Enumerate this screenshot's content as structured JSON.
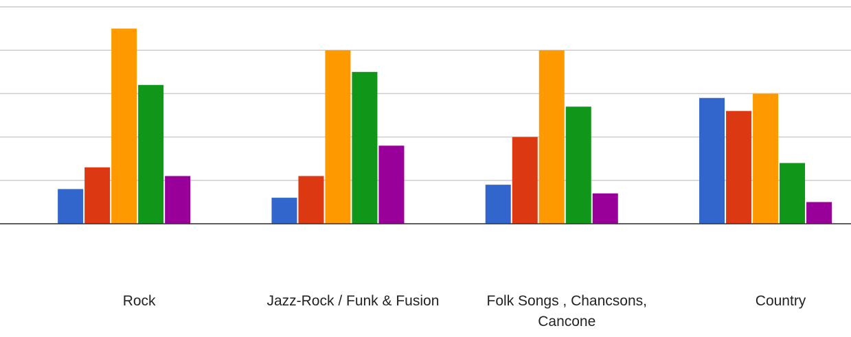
{
  "chart_data": {
    "type": "bar",
    "categories": [
      "Rock",
      "Jazz-Rock / Funk & Fusion",
      "Folk Songs , Chancsons, Cancone",
      "Country"
    ],
    "series": [
      {
        "color": "#3366cc",
        "values": [
          0.8,
          0.6,
          0.9,
          2.9
        ]
      },
      {
        "color": "#dc3912",
        "values": [
          1.3,
          1.1,
          2.0,
          2.6
        ]
      },
      {
        "color": "#ff9900",
        "values": [
          4.5,
          4.0,
          4.0,
          3.0
        ]
      },
      {
        "color": "#109618",
        "values": [
          3.2,
          3.5,
          2.7,
          1.4
        ]
      },
      {
        "color": "#990099",
        "values": [
          1.1,
          1.8,
          0.7,
          0.5
        ]
      }
    ],
    "ylim": [
      0,
      5
    ],
    "yticks": [
      0,
      1,
      2,
      3,
      4,
      5
    ],
    "grid": true
  }
}
